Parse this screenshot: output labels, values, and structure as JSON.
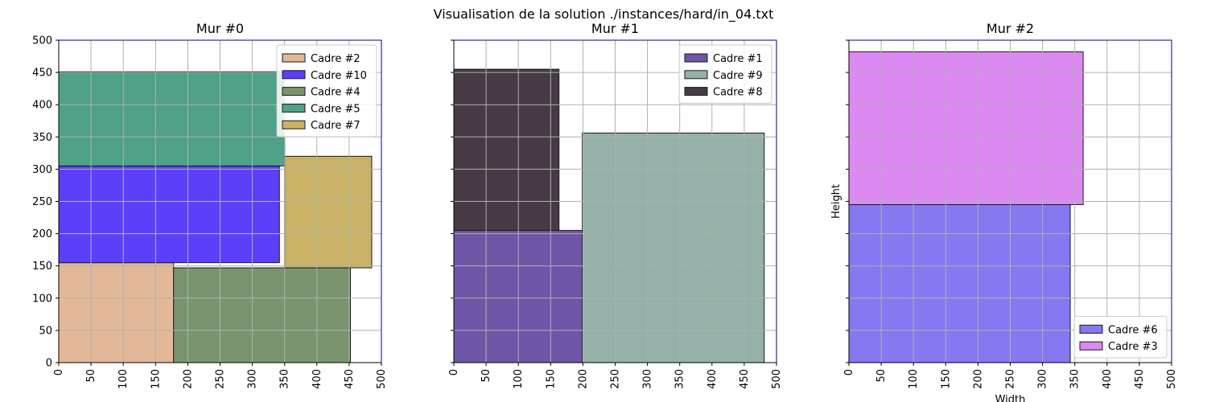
{
  "title": "Visualisation de la solution ./instances/hard/in_04.txt",
  "chart_data": [
    {
      "type": "rectangles",
      "title": "Mur #0",
      "xlim": [
        0,
        500
      ],
      "ylim": [
        0,
        500
      ],
      "xticks": [
        "0",
        "50",
        "100",
        "150",
        "200",
        "250",
        "300",
        "350",
        "400",
        "450",
        "500"
      ],
      "yticks": [
        "0",
        "50",
        "100",
        "150",
        "200",
        "250",
        "300",
        "350",
        "400",
        "450",
        "500"
      ],
      "grid": true,
      "legend_position": "top-right",
      "rects": [
        {
          "name": "Cadre #2",
          "x": 0,
          "y": 0,
          "w": 178,
          "h": 155,
          "color": "#e3b899"
        },
        {
          "name": "Cadre #10",
          "x": 0,
          "y": 155,
          "w": 342,
          "h": 150,
          "color": "#5b3ffa"
        },
        {
          "name": "Cadre #4",
          "x": 178,
          "y": 0,
          "w": 274,
          "h": 147,
          "color": "#79956f"
        },
        {
          "name": "Cadre #5",
          "x": 0,
          "y": 305,
          "w": 350,
          "h": 146,
          "color": "#4fa189"
        },
        {
          "name": "Cadre #7",
          "x": 350,
          "y": 147,
          "w": 135,
          "h": 173,
          "color": "#c9b266"
        }
      ]
    },
    {
      "type": "rectangles",
      "title": "Mur #1",
      "xlim": [
        0,
        500
      ],
      "ylim": [
        0,
        500
      ],
      "xticks": [
        "0",
        "50",
        "100",
        "150",
        "200",
        "250",
        "300",
        "350",
        "400",
        "450",
        "500"
      ],
      "yticks": [],
      "grid": true,
      "legend_position": "top-right",
      "rects": [
        {
          "name": "Cadre #1",
          "x": 0,
          "y": 0,
          "w": 199,
          "h": 205,
          "color": "#6f55a5"
        },
        {
          "name": "Cadre #9",
          "x": 199,
          "y": 0,
          "w": 282,
          "h": 356,
          "color": "#95b1a9"
        },
        {
          "name": "Cadre #8",
          "x": 0,
          "y": 205,
          "w": 163,
          "h": 250,
          "color": "#463b45"
        }
      ]
    },
    {
      "type": "rectangles",
      "title": "Mur #2",
      "xlabel": "Width",
      "ylabel": "Height",
      "xlim": [
        0,
        500
      ],
      "ylim": [
        0,
        500
      ],
      "xticks": [
        "0",
        "50",
        "100",
        "150",
        "200",
        "250",
        "300",
        "350",
        "400",
        "450",
        "500"
      ],
      "yticks": [],
      "grid": true,
      "legend_position": "bottom-right",
      "rects": [
        {
          "name": "Cadre #6",
          "x": 0,
          "y": 0,
          "w": 343,
          "h": 245,
          "color": "#8479f1"
        },
        {
          "name": "Cadre #3",
          "x": 0,
          "y": 245,
          "w": 363,
          "h": 237,
          "color": "#dc89f3"
        }
      ]
    }
  ]
}
